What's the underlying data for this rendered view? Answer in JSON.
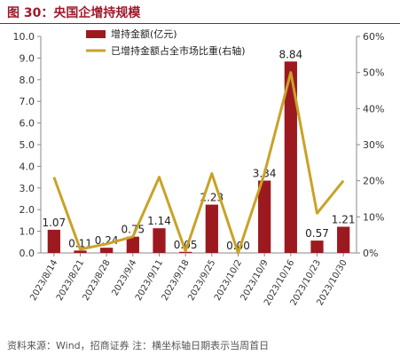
{
  "header": {
    "title": "图 30：央国企增持规模"
  },
  "footer": {
    "source": "资料来源：Wind，招商证券  注：横坐标轴日期表示当周首日"
  },
  "chart_data": {
    "type": "bar",
    "categories": [
      "2023/8/14",
      "2023/8/21",
      "2023/8/28",
      "2023/9/4",
      "2023/9/11",
      "2023/9/18",
      "2023/9/25",
      "2023/10/2",
      "2023/10/9",
      "2023/10/16",
      "2023/10/23",
      "2023/10/30"
    ],
    "series": [
      {
        "name": "增持金额(亿元)",
        "axis": "left",
        "values": [
          1.07,
          0.11,
          0.24,
          0.75,
          1.14,
          0.05,
          2.23,
          0.0,
          3.34,
          8.84,
          0.57,
          1.21
        ],
        "labels": [
          "1.07",
          "0.11",
          "0.24",
          "0.75",
          "1.14",
          "0.05",
          "2.23",
          "0.00",
          "3.34",
          "8.84",
          "0.57",
          "1.21"
        ],
        "color": "#9c1a1f"
      },
      {
        "name": "已增持金额占全市场比重(右轴)",
        "axis": "right",
        "type": "line",
        "values": [
          0.21,
          0.01,
          0.025,
          0.045,
          0.21,
          0.005,
          0.22,
          0.0,
          0.22,
          0.5,
          0.11,
          0.2
        ],
        "color": "#c9a227"
      }
    ],
    "y_left": {
      "min": 0,
      "max": 10,
      "ticks": [
        "0.0",
        "1.0",
        "2.0",
        "3.0",
        "4.0",
        "5.0",
        "6.0",
        "7.0",
        "8.0",
        "9.0",
        "10.0"
      ]
    },
    "y_right": {
      "min": 0,
      "max": 0.6,
      "ticks": [
        "0%",
        "10%",
        "20%",
        "30%",
        "40%",
        "50%",
        "60%"
      ]
    },
    "legend_position": "top",
    "grid": false
  }
}
